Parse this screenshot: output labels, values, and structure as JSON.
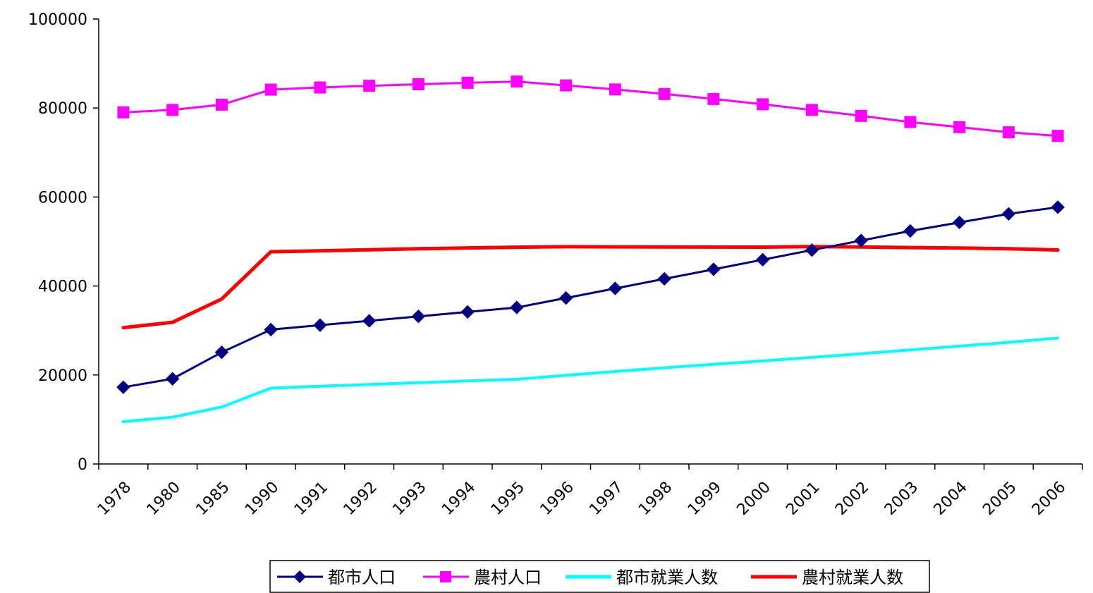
{
  "chart_data": {
    "type": "line",
    "title": "",
    "xlabel": "",
    "ylabel": "",
    "categories": [
      "1978",
      "1980",
      "1985",
      "1990",
      "1991",
      "1992",
      "1993",
      "1994",
      "1995",
      "1996",
      "1997",
      "1998",
      "1999",
      "2000",
      "2001",
      "2002",
      "2003",
      "2004",
      "2005",
      "2006"
    ],
    "ylim": [
      0,
      100000
    ],
    "yticks": [
      "0",
      "20000",
      "40000",
      "60000",
      "80000",
      "100000"
    ],
    "grid": false,
    "legend_position": "bottom",
    "series": [
      {
        "name": "都市人口",
        "color": "#000080",
        "marker": "diamond",
        "values": [
          17245,
          19140,
          25094,
          30195,
          31203,
          32175,
          33173,
          34169,
          35174,
          37304,
          39449,
          41608,
          43748,
          45906,
          48064,
          50212,
          52376,
          54283,
          56212,
          57706
        ]
      },
      {
        "name": "農村人口",
        "color": "#FF00FF",
        "marker": "square",
        "values": [
          79014,
          79565,
          80757,
          84138,
          84620,
          84996,
          85344,
          85681,
          85947,
          85085,
          84177,
          83153,
          82038,
          80837,
          79563,
          78241,
          76851,
          75705,
          74544,
          73742
        ]
      },
      {
        "name": "都市就業人数",
        "color": "#00FFFF",
        "marker": "none",
        "values": [
          9514,
          10525,
          12808,
          17041,
          17465,
          17861,
          18262,
          18653,
          19040,
          19922,
          20781,
          21616,
          22412,
          23151,
          23940,
          24780,
          25639,
          26476,
          27331,
          28310
        ]
      },
      {
        "name": "農村就業人数",
        "color": "#FF0000",
        "marker": "none",
        "values": [
          30638,
          31836,
          37065,
          47708,
          47911,
          48142,
          48375,
          48562,
          48722,
          48829,
          48789,
          48779,
          48742,
          48726,
          48855,
          48766,
          48643,
          48547,
          48378,
          48100
        ]
      }
    ]
  }
}
